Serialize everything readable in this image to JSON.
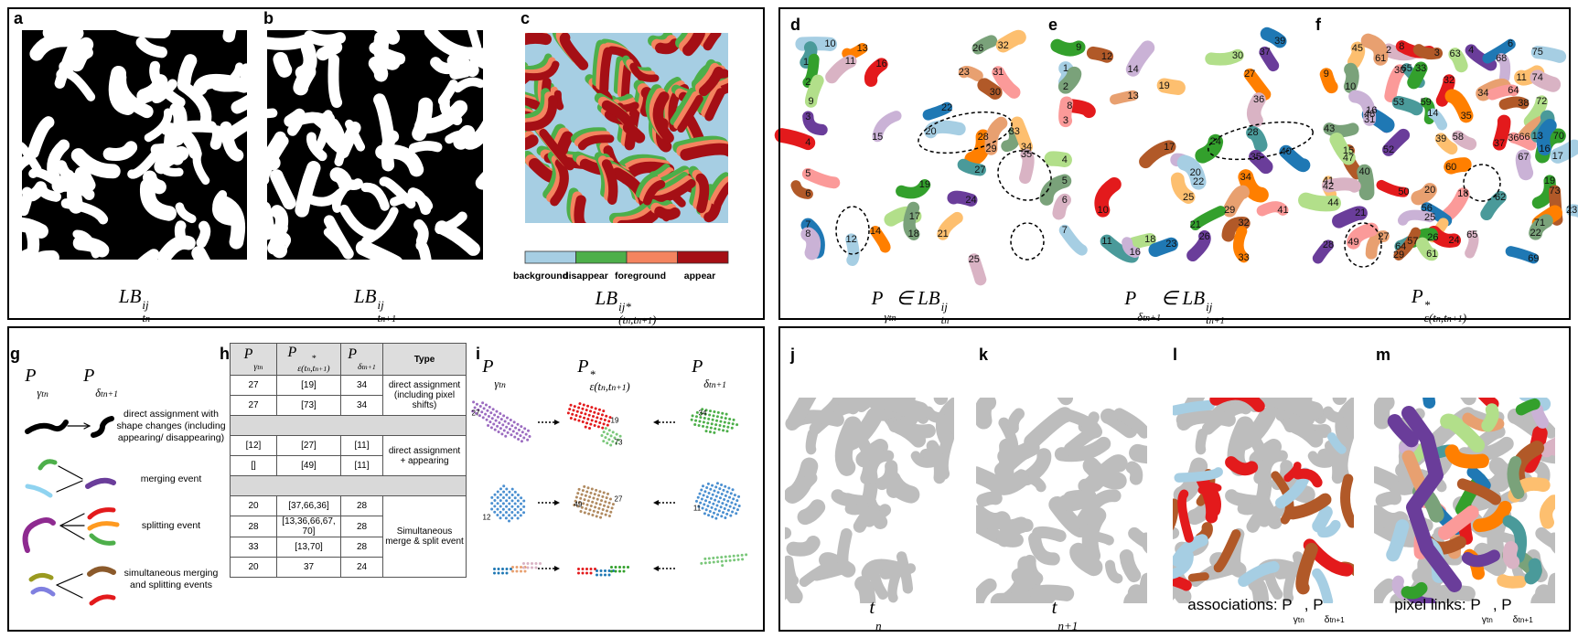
{
  "panels": {
    "a": {
      "letter": "a",
      "caption": [
        "LB",
        "ij",
        "t",
        "n"
      ]
    },
    "b": {
      "letter": "b",
      "caption": [
        "LB",
        "ij",
        "t",
        "n+1"
      ]
    },
    "c": {
      "letter": "c",
      "caption": [
        "LB",
        "ij*",
        "(t",
        "n",
        ",t",
        "n+1",
        ")"
      ],
      "legend": [
        "background",
        "disappear",
        "foreground",
        "appear"
      ]
    },
    "d": {
      "letter": "d",
      "caption": [
        "P",
        "γ",
        "t",
        "n",
        "∈ LB",
        "ij",
        "t",
        "n"
      ],
      "labels": [
        "10",
        "13",
        "26",
        "32",
        "11",
        "16",
        "23",
        "31",
        "1",
        "2",
        "30",
        "9",
        "3",
        "22",
        "15",
        "20",
        "28",
        "33",
        "34",
        "35",
        "4",
        "29",
        "5",
        "27",
        "19",
        "6",
        "17",
        "24",
        "7",
        "8",
        "12",
        "14",
        "18",
        "21",
        "25"
      ]
    },
    "e": {
      "letter": "e",
      "caption": [
        "P",
        "δ",
        "t",
        "n+1",
        "∈ LB",
        "ij",
        "t",
        "n+1"
      ],
      "labels": [
        "9",
        "12",
        "30",
        "37",
        "39",
        "14",
        "1",
        "27",
        "2",
        "19",
        "36",
        "8",
        "13",
        "3",
        "28",
        "24",
        "17",
        "4",
        "35",
        "40",
        "20",
        "22",
        "34",
        "5",
        "25",
        "6",
        "10",
        "29",
        "41",
        "11",
        "21",
        "32",
        "18",
        "26",
        "23",
        "16",
        "7",
        "33"
      ]
    },
    "f": {
      "letter": "f",
      "caption": [
        "P",
        "*",
        "ε",
        "(t",
        "n",
        ",t",
        "n+1",
        ")"
      ],
      "labels": [
        "45",
        "2",
        "8",
        "61",
        "30",
        "65",
        "33",
        "3",
        "63",
        "4",
        "6",
        "68",
        "75",
        "9",
        "10",
        "11",
        "74",
        "32",
        "34",
        "64",
        "53",
        "59",
        "38",
        "72",
        "16",
        "48",
        "31",
        "14",
        "35",
        "43",
        "39",
        "58",
        "37",
        "66",
        "36",
        "13",
        "70",
        "15",
        "47",
        "52",
        "16",
        "67",
        "17",
        "60",
        "40",
        "41",
        "42",
        "50",
        "20",
        "18",
        "62",
        "19",
        "73",
        "44",
        "21",
        "56",
        "25",
        "23",
        "71",
        "22",
        "26",
        "65",
        "24",
        "27",
        "49",
        "64",
        "57",
        "29",
        "61",
        "28",
        "69"
      ]
    },
    "g": {
      "letter": "g",
      "header": [
        [
          "P",
          "γ",
          "t",
          "n"
        ],
        [
          "P",
          "δ",
          "t",
          "n+1"
        ]
      ],
      "events": [
        "direct assignment with shape changes (including appearing/ disappearing)",
        "merging event",
        "splitting event",
        "simultaneous merging and splitting events"
      ]
    },
    "h": {
      "letter": "h",
      "table": {
        "header": [
          [
            "P",
            "γ",
            "t",
            "n"
          ],
          [
            "P",
            "*",
            "ε",
            "(t",
            "n",
            ",t",
            "n+1",
            ")"
          ],
          [
            "P",
            "δ",
            "t",
            "n+1"
          ],
          "Type"
        ],
        "groups": [
          {
            "rows": [
              [
                "27",
                "[19]",
                "34"
              ],
              [
                "27",
                "[73]",
                "34"
              ]
            ],
            "type": "direct assignment (including pixel shifts)"
          },
          {
            "rows": [
              [
                "[12]",
                "[27]",
                "[11]"
              ],
              [
                "[]",
                "[49]",
                "[11]"
              ]
            ],
            "type": "direct assignment + appearing"
          },
          {
            "rows": [
              [
                "20",
                "[37,66,36]",
                "28"
              ],
              [
                "28",
                "[13,36,66,67, 70]",
                "28"
              ],
              [
                "33",
                "[13,70]",
                "28"
              ],
              [
                "20",
                "37",
                "24"
              ]
            ],
            "type": "Simultaneous merge & split event"
          }
        ]
      }
    },
    "i": {
      "letter": "i",
      "header": [
        [
          "P",
          "γ",
          "t",
          "n"
        ],
        [
          "P",
          "*",
          "ε",
          "(t",
          "n",
          ",t",
          "n+1",
          ")"
        ],
        [
          "P",
          "δ",
          "t",
          "n+1"
        ]
      ],
      "labels": [
        [
          "27",
          "19",
          "73",
          "34"
        ],
        [
          "12",
          "49",
          "27",
          "11"
        ]
      ]
    },
    "j": {
      "letter": "j",
      "caption": [
        "t",
        "n"
      ]
    },
    "k": {
      "letter": "k",
      "caption": [
        "t",
        "n+1"
      ]
    },
    "l": {
      "letter": "l",
      "caption": [
        "associations: P",
        "γ",
        "t",
        "n",
        ", P",
        "δ",
        "t",
        "n+1"
      ]
    },
    "m": {
      "letter": "m",
      "caption": [
        "pixel links: P",
        "γ",
        "t",
        "n",
        ", P",
        "δ",
        "t",
        "n+1"
      ]
    }
  }
}
